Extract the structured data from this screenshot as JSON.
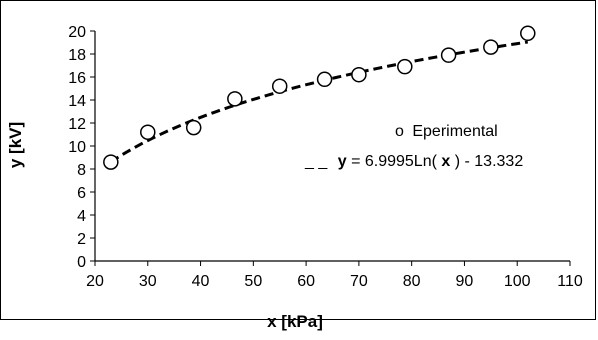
{
  "chart_data": {
    "type": "scatter",
    "xlabel": "x [kPa]",
    "ylabel": "y [kV]",
    "xlim": [
      20,
      110
    ],
    "ylim": [
      0,
      20
    ],
    "x_ticks": [
      20,
      30,
      40,
      50,
      60,
      70,
      80,
      90,
      100,
      110
    ],
    "y_ticks": [
      0,
      2,
      4,
      6,
      8,
      10,
      12,
      14,
      16,
      18,
      20
    ],
    "grid": false,
    "legend_position": "right",
    "series": [
      {
        "name": "Eperimental",
        "kind": "scatter",
        "marker": "open-circle",
        "x": [
          23,
          30,
          38.7,
          46.5,
          55,
          63.5,
          70,
          78.7,
          87,
          95,
          102
        ],
        "y": [
          8.6,
          11.2,
          11.6,
          14.1,
          15.2,
          15.8,
          16.2,
          16.9,
          17.9,
          18.6,
          19.8
        ]
      },
      {
        "name": "y = 6.9995Ln(x) - 13.332",
        "kind": "line",
        "style": "dashed",
        "equation": {
          "a": 6.9995,
          "b": -13.332,
          "form": "a*ln(x)+b"
        },
        "x_range": [
          23,
          102
        ]
      }
    ],
    "legend": {
      "marker_symbol": "o",
      "line_symbol": "_ _",
      "fit_parts": [
        "y",
        " = 6.9995Ln(",
        "x",
        ") - 13.332"
      ]
    }
  }
}
